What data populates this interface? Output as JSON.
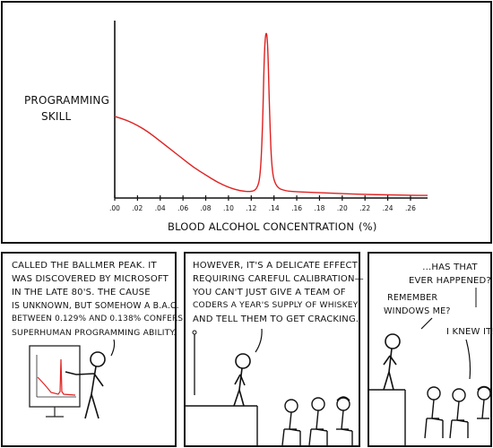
{
  "chart_data": {
    "type": "line",
    "ylabel_lines": [
      "PROGRAMMING",
      "SKILL"
    ],
    "xlabel": "BLOOD ALCOHOL CONCENTRATION",
    "xunit": "(%)",
    "x_ticks": [
      ".00",
      ".02",
      ".04",
      ".06",
      ".08",
      ".10",
      ".12",
      ".14",
      ".16",
      ".18",
      ".20",
      ".22",
      ".24",
      ".26"
    ],
    "x_tick_values": [
      0.0,
      0.02,
      0.04,
      0.06,
      0.08,
      0.1,
      0.12,
      0.14,
      0.16,
      0.18,
      0.2,
      0.22,
      0.24,
      0.26
    ],
    "xlim": [
      0.0,
      0.275
    ],
    "ylim": [
      0,
      100
    ],
    "grid": false,
    "series": [
      {
        "color": "#e02020",
        "x": [
          0.0,
          0.01,
          0.02,
          0.03,
          0.04,
          0.05,
          0.06,
          0.07,
          0.08,
          0.09,
          0.1,
          0.11,
          0.12,
          0.125,
          0.128,
          0.13,
          0.1315,
          0.133,
          0.1345,
          0.136,
          0.138,
          0.142,
          0.15,
          0.16,
          0.18,
          0.2,
          0.22,
          0.24,
          0.26,
          0.275
        ],
        "y": [
          46,
          44,
          41,
          37,
          32,
          27,
          22,
          17,
          13,
          9,
          6,
          4,
          3.5,
          5,
          12,
          40,
          83,
          95,
          88,
          50,
          15,
          6,
          4,
          3.5,
          3,
          2.5,
          2,
          1.8,
          1.5,
          1.5
        ]
      }
    ]
  },
  "panel1": {
    "caption_lines": [
      "CALLED THE BALLMER PEAK. IT",
      "WAS DISCOVERED BY MICROSOFT",
      "IN THE LATE 80'S. THE CAUSE",
      "IS UNKNOWN, BUT SOMEHOW A B.A.C.",
      "BETWEEN 0.129% AND 0.138% CONFERS",
      "SUPERHUMAN PROGRAMMING ABILITY."
    ]
  },
  "panel2": {
    "caption_lines": [
      "HOWEVER, IT'S A DELICATE EFFECT",
      "REQUIRING CAREFUL CALIBRATION—",
      "YOU CAN'T JUST GIVE A TEAM OF",
      "CODERS A YEAR'S SUPPLY OF WHISKEY",
      "AND TELL THEM TO GET CRACKING."
    ]
  },
  "panel3": {
    "speech_top_lines": [
      "...HAS THAT",
      "EVER HAPPENED?"
    ],
    "speech_left_lines": [
      "REMEMBER",
      "WINDOWS ME?"
    ],
    "speech_right": "I KNEW IT!"
  },
  "colors": {
    "curve": "#e02020",
    "ink": "#111111"
  }
}
